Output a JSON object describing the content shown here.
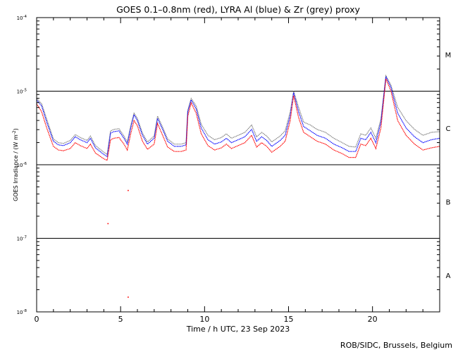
{
  "chart_data": {
    "type": "line",
    "title": "GOES 0.1–0.8nm (red), LYRA Al (blue) & Zr (grey) proxy",
    "xlabel": "Time / h UTC, 23 Sep 2023",
    "ylabel_main": "GOES Irradiance / (W m",
    "ylabel_sup": "-2",
    "ylabel_end": ")",
    "credit": "ROB/SIDC, Brussels, Belgium",
    "xlim": [
      0,
      24
    ],
    "ylog_range": [
      -8,
      -4
    ],
    "x_ticks": [
      {
        "value": 0,
        "label": "0"
      },
      {
        "value": 5,
        "label": "5"
      },
      {
        "value": 10,
        "label": "10"
      },
      {
        "value": 15,
        "label": "15"
      },
      {
        "value": 20,
        "label": "20"
      }
    ],
    "y_ticks": [
      {
        "exp": -8,
        "base": "10",
        "sup": "-8"
      },
      {
        "exp": -7,
        "base": "10",
        "sup": "-7"
      },
      {
        "exp": -6,
        "base": "10",
        "sup": "-6"
      },
      {
        "exp": -5,
        "base": "10",
        "sup": "-5"
      },
      {
        "exp": -4,
        "base": "10",
        "sup": "-4"
      }
    ],
    "class_lines": [
      -7,
      -6,
      -5
    ],
    "class_labels": [
      {
        "label": "A",
        "log": -7.5
      },
      {
        "label": "B",
        "log": -6.5
      },
      {
        "label": "C",
        "log": -5.5
      },
      {
        "label": "M",
        "log": -4.5
      }
    ],
    "colors": {
      "goes": "#ff0000",
      "al": "#0000ff",
      "zr": "#808080"
    },
    "series": [
      {
        "name": "red",
        "color": "#ff0000",
        "points": [
          [
            0,
            -5.17
          ],
          [
            0.3,
            -5.28
          ],
          [
            0.6,
            -5.5
          ],
          [
            1.0,
            -5.75
          ],
          [
            1.3,
            -5.8
          ],
          [
            1.6,
            -5.81
          ],
          [
            2.0,
            -5.78
          ],
          [
            2.3,
            -5.7
          ],
          [
            2.6,
            -5.74
          ],
          [
            3.0,
            -5.78
          ],
          [
            3.2,
            -5.72
          ],
          [
            3.5,
            -5.84
          ],
          [
            4.0,
            -5.92
          ],
          [
            4.2,
            -5.94
          ],
          [
            4.4,
            -5.66
          ],
          [
            4.6,
            -5.64
          ],
          [
            4.9,
            -5.63
          ],
          [
            5.2,
            -5.72
          ],
          [
            5.4,
            -5.8
          ],
          [
            5.6,
            -5.58
          ],
          [
            5.8,
            -5.4
          ],
          [
            6.0,
            -5.47
          ],
          [
            6.3,
            -5.68
          ],
          [
            6.6,
            -5.79
          ],
          [
            7.0,
            -5.72
          ],
          [
            7.2,
            -5.44
          ],
          [
            7.5,
            -5.6
          ],
          [
            7.8,
            -5.76
          ],
          [
            8.2,
            -5.82
          ],
          [
            8.6,
            -5.82
          ],
          [
            8.9,
            -5.8
          ],
          [
            9.0,
            -5.34
          ],
          [
            9.2,
            -5.16
          ],
          [
            9.5,
            -5.3
          ],
          [
            9.8,
            -5.58
          ],
          [
            10.2,
            -5.74
          ],
          [
            10.6,
            -5.8
          ],
          [
            11.0,
            -5.77
          ],
          [
            11.3,
            -5.72
          ],
          [
            11.6,
            -5.78
          ],
          [
            12.0,
            -5.74
          ],
          [
            12.4,
            -5.7
          ],
          [
            12.8,
            -5.6
          ],
          [
            13.1,
            -5.76
          ],
          [
            13.4,
            -5.7
          ],
          [
            13.7,
            -5.75
          ],
          [
            14.0,
            -5.83
          ],
          [
            14.5,
            -5.75
          ],
          [
            14.8,
            -5.68
          ],
          [
            15.1,
            -5.4
          ],
          [
            15.3,
            -5.06
          ],
          [
            15.6,
            -5.36
          ],
          [
            15.9,
            -5.56
          ],
          [
            16.3,
            -5.62
          ],
          [
            16.7,
            -5.68
          ],
          [
            17.2,
            -5.72
          ],
          [
            17.7,
            -5.8
          ],
          [
            18.2,
            -5.85
          ],
          [
            18.6,
            -5.9
          ],
          [
            19.0,
            -5.9
          ],
          [
            19.3,
            -5.72
          ],
          [
            19.6,
            -5.74
          ],
          [
            19.9,
            -5.64
          ],
          [
            20.2,
            -5.78
          ],
          [
            20.5,
            -5.5
          ],
          [
            20.8,
            -4.83
          ],
          [
            21.1,
            -5.0
          ],
          [
            21.5,
            -5.4
          ],
          [
            22.0,
            -5.6
          ],
          [
            22.5,
            -5.72
          ],
          [
            23.0,
            -5.8
          ],
          [
            23.5,
            -5.77
          ],
          [
            24.0,
            -5.75
          ]
        ]
      },
      {
        "name": "blue",
        "color": "#0000ff",
        "points": [
          [
            0,
            -5.12
          ],
          [
            0.3,
            -5.2
          ],
          [
            0.6,
            -5.42
          ],
          [
            1.0,
            -5.68
          ],
          [
            1.3,
            -5.73
          ],
          [
            1.6,
            -5.74
          ],
          [
            2.0,
            -5.7
          ],
          [
            2.3,
            -5.62
          ],
          [
            2.6,
            -5.66
          ],
          [
            3.0,
            -5.7
          ],
          [
            3.2,
            -5.64
          ],
          [
            3.5,
            -5.77
          ],
          [
            4.0,
            -5.86
          ],
          [
            4.2,
            -5.89
          ],
          [
            4.4,
            -5.57
          ],
          [
            4.6,
            -5.55
          ],
          [
            4.9,
            -5.54
          ],
          [
            5.2,
            -5.64
          ],
          [
            5.4,
            -5.72
          ],
          [
            5.6,
            -5.5
          ],
          [
            5.8,
            -5.32
          ],
          [
            6.0,
            -5.4
          ],
          [
            6.3,
            -5.6
          ],
          [
            6.6,
            -5.72
          ],
          [
            7.0,
            -5.64
          ],
          [
            7.2,
            -5.37
          ],
          [
            7.5,
            -5.52
          ],
          [
            7.8,
            -5.68
          ],
          [
            8.2,
            -5.75
          ],
          [
            8.6,
            -5.75
          ],
          [
            8.9,
            -5.73
          ],
          [
            9.0,
            -5.28
          ],
          [
            9.2,
            -5.12
          ],
          [
            9.5,
            -5.24
          ],
          [
            9.8,
            -5.5
          ],
          [
            10.2,
            -5.66
          ],
          [
            10.6,
            -5.72
          ],
          [
            11.0,
            -5.69
          ],
          [
            11.3,
            -5.64
          ],
          [
            11.6,
            -5.7
          ],
          [
            12.0,
            -5.66
          ],
          [
            12.4,
            -5.62
          ],
          [
            12.8,
            -5.52
          ],
          [
            13.1,
            -5.68
          ],
          [
            13.4,
            -5.62
          ],
          [
            13.7,
            -5.67
          ],
          [
            14.0,
            -5.75
          ],
          [
            14.5,
            -5.67
          ],
          [
            14.8,
            -5.6
          ],
          [
            15.1,
            -5.33
          ],
          [
            15.3,
            -5.02
          ],
          [
            15.6,
            -5.28
          ],
          [
            15.9,
            -5.48
          ],
          [
            16.3,
            -5.54
          ],
          [
            16.7,
            -5.6
          ],
          [
            17.2,
            -5.64
          ],
          [
            17.7,
            -5.72
          ],
          [
            18.2,
            -5.77
          ],
          [
            18.6,
            -5.82
          ],
          [
            19.0,
            -5.82
          ],
          [
            19.3,
            -5.64
          ],
          [
            19.6,
            -5.66
          ],
          [
            19.9,
            -5.56
          ],
          [
            20.2,
            -5.7
          ],
          [
            20.5,
            -5.42
          ],
          [
            20.8,
            -4.8
          ],
          [
            21.1,
            -4.95
          ],
          [
            21.5,
            -5.3
          ],
          [
            22.0,
            -5.5
          ],
          [
            22.5,
            -5.62
          ],
          [
            23.0,
            -5.7
          ],
          [
            23.5,
            -5.66
          ],
          [
            24.0,
            -5.64
          ]
        ]
      },
      {
        "name": "grey",
        "color": "#808080",
        "points": [
          [
            0,
            -5.1
          ],
          [
            0.3,
            -5.17
          ],
          [
            0.6,
            -5.38
          ],
          [
            1.0,
            -5.65
          ],
          [
            1.3,
            -5.7
          ],
          [
            1.6,
            -5.71
          ],
          [
            2.0,
            -5.67
          ],
          [
            2.3,
            -5.59
          ],
          [
            2.6,
            -5.63
          ],
          [
            3.0,
            -5.67
          ],
          [
            3.2,
            -5.61
          ],
          [
            3.5,
            -5.74
          ],
          [
            4.0,
            -5.83
          ],
          [
            4.2,
            -5.86
          ],
          [
            4.4,
            -5.54
          ],
          [
            4.6,
            -5.52
          ],
          [
            4.9,
            -5.51
          ],
          [
            5.2,
            -5.61
          ],
          [
            5.4,
            -5.69
          ],
          [
            5.6,
            -5.47
          ],
          [
            5.8,
            -5.3
          ],
          [
            6.0,
            -5.37
          ],
          [
            6.3,
            -5.57
          ],
          [
            6.6,
            -5.69
          ],
          [
            7.0,
            -5.61
          ],
          [
            7.2,
            -5.34
          ],
          [
            7.5,
            -5.49
          ],
          [
            7.8,
            -5.65
          ],
          [
            8.2,
            -5.72
          ],
          [
            8.6,
            -5.72
          ],
          [
            8.9,
            -5.7
          ],
          [
            9.0,
            -5.26
          ],
          [
            9.2,
            -5.1
          ],
          [
            9.5,
            -5.2
          ],
          [
            9.8,
            -5.45
          ],
          [
            10.2,
            -5.6
          ],
          [
            10.6,
            -5.66
          ],
          [
            11.0,
            -5.63
          ],
          [
            11.3,
            -5.58
          ],
          [
            11.6,
            -5.64
          ],
          [
            12.0,
            -5.6
          ],
          [
            12.4,
            -5.56
          ],
          [
            12.8,
            -5.46
          ],
          [
            13.1,
            -5.62
          ],
          [
            13.4,
            -5.56
          ],
          [
            13.7,
            -5.61
          ],
          [
            14.0,
            -5.69
          ],
          [
            14.5,
            -5.61
          ],
          [
            14.8,
            -5.54
          ],
          [
            15.1,
            -5.28
          ],
          [
            15.3,
            -5.0
          ],
          [
            15.6,
            -5.22
          ],
          [
            15.9,
            -5.42
          ],
          [
            16.3,
            -5.46
          ],
          [
            16.7,
            -5.52
          ],
          [
            17.2,
            -5.56
          ],
          [
            17.7,
            -5.64
          ],
          [
            18.2,
            -5.7
          ],
          [
            18.6,
            -5.75
          ],
          [
            19.0,
            -5.76
          ],
          [
            19.3,
            -5.58
          ],
          [
            19.6,
            -5.6
          ],
          [
            19.9,
            -5.5
          ],
          [
            20.2,
            -5.64
          ],
          [
            20.5,
            -5.38
          ],
          [
            20.8,
            -4.79
          ],
          [
            21.1,
            -4.92
          ],
          [
            21.5,
            -5.22
          ],
          [
            22.0,
            -5.4
          ],
          [
            22.5,
            -5.52
          ],
          [
            23.0,
            -5.6
          ],
          [
            23.5,
            -5.56
          ],
          [
            24.0,
            -5.55
          ]
        ]
      }
    ],
    "outliers": [
      [
        4.25,
        -6.8
      ],
      [
        5.45,
        -6.35
      ],
      [
        5.45,
        -7.8
      ]
    ]
  }
}
